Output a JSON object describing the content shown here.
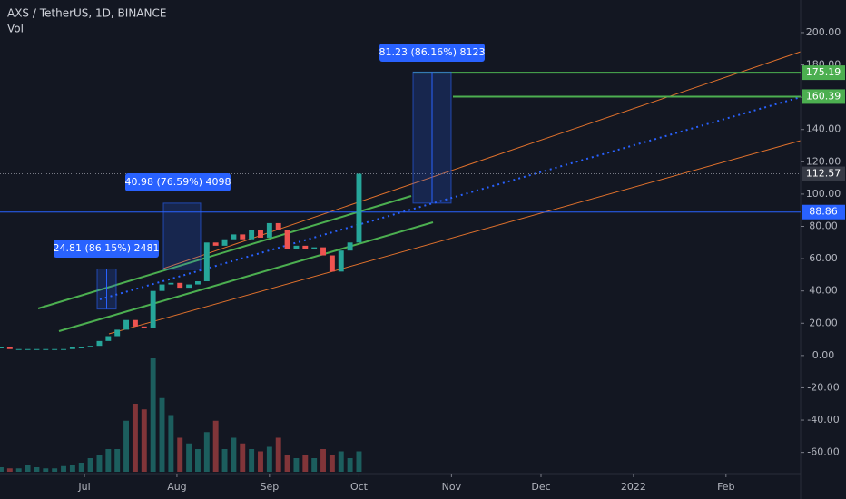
{
  "chart_data": {
    "type": "candlestick",
    "title": "AXS / TetherUS, 1D, BINANCE",
    "subtitle": "Vol",
    "x": [
      -28,
      -25,
      -22,
      -19,
      -16,
      -13,
      -10,
      -7,
      -4,
      -1,
      2,
      5,
      8,
      11,
      14,
      17,
      20,
      23,
      26,
      29,
      32,
      35,
      38,
      41,
      44,
      47,
      50,
      53,
      56,
      59,
      62,
      65,
      68,
      71,
      74,
      77,
      80,
      83,
      86,
      89,
      92
    ],
    "open": [
      5,
      5,
      4,
      4,
      4,
      4,
      4,
      4,
      4,
      5,
      5,
      6,
      9,
      12,
      16,
      22,
      18,
      17,
      40,
      44,
      45,
      42,
      44,
      46,
      70,
      68,
      72,
      75,
      72,
      78,
      73,
      82,
      78,
      66,
      68,
      66,
      67,
      62,
      52,
      65,
      70
    ],
    "close": [
      5,
      4,
      4,
      4,
      4,
      4,
      4,
      4,
      5,
      5,
      6,
      9,
      12,
      16,
      22,
      18,
      17,
      40,
      44,
      45,
      42,
      44,
      46,
      70,
      68,
      72,
      75,
      72,
      78,
      73,
      82,
      78,
      66,
      68,
      66,
      67,
      62,
      52,
      65,
      70,
      112.57
    ],
    "volume": [
      4,
      3,
      3,
      6,
      4,
      3,
      3,
      5,
      6,
      8,
      12,
      15,
      20,
      20,
      45,
      60,
      55,
      100,
      65,
      50,
      30,
      25,
      20,
      35,
      45,
      20,
      30,
      25,
      20,
      18,
      22,
      30,
      15,
      12,
      15,
      12,
      20,
      15,
      18,
      12,
      18
    ],
    "up_color": "#26a69a",
    "down_color": "#ef5350",
    "xlim": [
      -28.3,
      240
    ],
    "xticks": [
      {
        "value": 0,
        "label": "Jul"
      },
      {
        "value": 31,
        "label": "Aug"
      },
      {
        "value": 62,
        "label": "Sep"
      },
      {
        "value": 92,
        "label": "Oct"
      },
      {
        "value": 123,
        "label": "Nov"
      },
      {
        "value": 153,
        "label": "Dec"
      },
      {
        "value": 184,
        "label": "2022"
      },
      {
        "value": 215,
        "label": "Feb"
      }
    ],
    "ylim": [
      -72,
      220.2
    ],
    "yticks": [
      {
        "value": 200,
        "label": "200.00"
      },
      {
        "value": 180,
        "label": "180.00"
      },
      {
        "value": 160,
        "label": "160.00"
      },
      {
        "value": 140,
        "label": "140.00"
      },
      {
        "value": 120,
        "label": "120.00"
      },
      {
        "value": 100,
        "label": "100.00"
      },
      {
        "value": 80,
        "label": "80.00"
      },
      {
        "value": 60,
        "label": "60.00"
      },
      {
        "value": 40,
        "label": "40.00"
      },
      {
        "value": 20,
        "label": "20.00"
      },
      {
        "value": 0,
        "label": "0.00"
      },
      {
        "value": -20,
        "label": "-20.00"
      },
      {
        "value": -40,
        "label": "-40.00"
      },
      {
        "value": -60,
        "label": "-60.00"
      }
    ],
    "horizontal_lines": [
      {
        "value": 175.19,
        "color": "#4caf50"
      },
      {
        "value": 160.39,
        "color": "#4caf50"
      },
      {
        "value": 112.57,
        "color": "#363a45"
      },
      {
        "value": 88.86,
        "color": "#2962ff"
      }
    ],
    "measurements": [
      {
        "label": "24.81 (86.15%) 2481",
        "low": 28.8,
        "high": 53.6
      },
      {
        "label": "40.98 (76.59%) 4098",
        "low": 53.4,
        "high": 94.4
      },
      {
        "label": "81.23 (86.16%) 8123",
        "low": 94.4,
        "high": 175.6
      }
    ]
  }
}
